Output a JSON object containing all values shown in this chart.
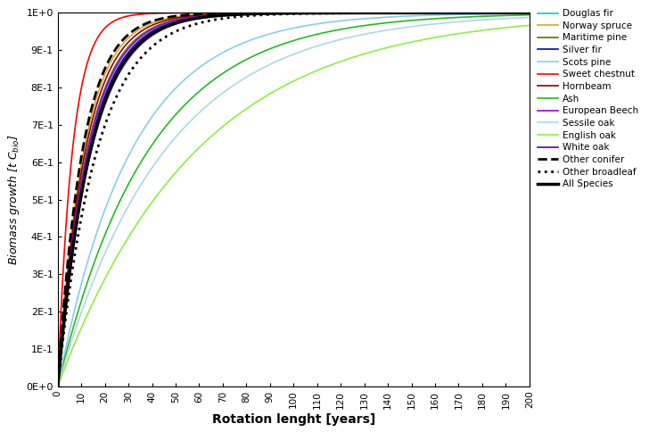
{
  "species": [
    {
      "name": "Douglas fir",
      "color": "#00CCCC",
      "ls": "-",
      "lw": 1.2,
      "k": 0.072
    },
    {
      "name": "Norway spruce",
      "color": "#DAA520",
      "ls": "-",
      "lw": 1.2,
      "k": 0.09
    },
    {
      "name": "Maritime pine",
      "color": "#6B6B00",
      "ls": "-",
      "lw": 1.2,
      "k": 0.08
    },
    {
      "name": "Silver fir",
      "color": "#0000CD",
      "ls": "-",
      "lw": 1.2,
      "k": 0.075
    },
    {
      "name": "Scots pine",
      "color": "#87CEEB",
      "ls": "-",
      "lw": 1.2,
      "k": 0.032
    },
    {
      "name": "Sweet chestnut",
      "color": "#FF0000",
      "ls": "-",
      "lw": 1.2,
      "k": 0.16
    },
    {
      "name": "Hornbeam",
      "color": "#8B0000",
      "ls": "-",
      "lw": 1.2,
      "k": 0.085
    },
    {
      "name": "Ash",
      "color": "#22BB22",
      "ls": "-",
      "lw": 1.2,
      "k": 0.026
    },
    {
      "name": "European Beech",
      "color": "#9400D3",
      "ls": "-",
      "lw": 1.2,
      "k": 0.078
    },
    {
      "name": "Sessile oak",
      "color": "#ADD8E6",
      "ls": "-",
      "lw": 1.2,
      "k": 0.022
    },
    {
      "name": "English oak",
      "color": "#90EE40",
      "ls": "-",
      "lw": 1.2,
      "k": 0.017
    },
    {
      "name": "White oak",
      "color": "#5500BB",
      "ls": "-",
      "lw": 1.2,
      "k": 0.07
    },
    {
      "name": "Other conifer",
      "color": "#000000",
      "ls": "--",
      "lw": 2.0,
      "k": 0.095
    },
    {
      "name": "Other broadleaf",
      "color": "#000000",
      "ls": ":",
      "lw": 2.0,
      "k": 0.06
    },
    {
      "name": "All Species",
      "color": "#000000",
      "ls": "-",
      "lw": 2.5,
      "k": 0.072
    }
  ],
  "xlabel": "Rotation lenght [years]",
  "ylabel_parts": [
    "Biomass growth [t C",
    "bio",
    "]"
  ],
  "ytick_vals": [
    0.0,
    0.1,
    0.2,
    0.3,
    0.4,
    0.5,
    0.6,
    0.7,
    0.8,
    0.9,
    1.0
  ],
  "ytick_labels": [
    "0E+0",
    "1E-1",
    "2E-1",
    "3E-1",
    "4E-1",
    "5E-1",
    "6E-1",
    "7E-1",
    "8E-1",
    "9E-1",
    "1E+0"
  ],
  "xtick_vals": [
    0,
    10,
    20,
    30,
    40,
    50,
    60,
    70,
    80,
    90,
    100,
    110,
    120,
    130,
    140,
    150,
    160,
    170,
    180,
    190,
    200
  ],
  "xlim": [
    0,
    200
  ],
  "ylim": [
    0.0,
    1.0
  ]
}
